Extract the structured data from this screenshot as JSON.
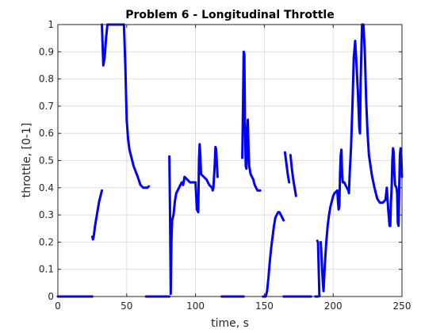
{
  "chart_data": {
    "type": "line",
    "title": "Problem 6 - Longitudinal Throttle",
    "xlabel": "time, s",
    "ylabel": "throttle, [0-1]",
    "xlim": [
      0,
      250
    ],
    "ylim": [
      0,
      1
    ],
    "xticks": [
      0,
      50,
      100,
      150,
      200,
      250
    ],
    "yticks": [
      0,
      0.1,
      0.2,
      0.3,
      0.4,
      0.5,
      0.6,
      0.7,
      0.8,
      0.9,
      1
    ],
    "xtick_labels": [
      "0",
      "50",
      "100",
      "150",
      "200",
      "250"
    ],
    "ytick_labels": [
      "0",
      "0.1",
      "0.2",
      "0.3",
      "0.4",
      "0.5",
      "0.6",
      "0.7",
      "0.8",
      "0.9",
      "1"
    ],
    "grid": true,
    "series_color": "#0000ff",
    "segments": [
      [
        [
          0,
          0
        ],
        [
          25,
          0
        ]
      ],
      [
        [
          25,
          0.22
        ],
        [
          25.5,
          0.21
        ],
        [
          26,
          0.22
        ],
        [
          27,
          0.26
        ],
        [
          28,
          0.29
        ],
        [
          29,
          0.32
        ],
        [
          30,
          0.35
        ],
        [
          31,
          0.37
        ],
        [
          32,
          0.39
        ]
      ],
      [
        [
          32,
          1
        ],
        [
          33,
          0.85
        ],
        [
          34,
          0.88
        ],
        [
          35,
          0.95
        ],
        [
          36,
          1
        ],
        [
          40,
          1
        ],
        [
          45,
          1
        ],
        [
          48,
          1
        ],
        [
          49,
          0.85
        ],
        [
          50,
          0.65
        ],
        [
          51,
          0.58
        ],
        [
          52,
          0.54
        ],
        [
          55,
          0.48
        ],
        [
          58,
          0.44
        ],
        [
          60,
          0.41
        ],
        [
          62,
          0.4
        ],
        [
          65,
          0.4
        ],
        [
          66,
          0.405
        ]
      ],
      [
        [
          64,
          0
        ],
        [
          81,
          0
        ]
      ],
      [
        [
          81,
          0.515
        ],
        [
          81.5,
          0.3
        ],
        [
          82,
          0.01
        ],
        [
          82.5,
          0.2
        ],
        [
          83,
          0.28
        ],
        [
          84,
          0.3
        ],
        [
          85,
          0.35
        ],
        [
          86,
          0.38
        ],
        [
          88,
          0.4
        ],
        [
          90,
          0.42
        ],
        [
          91,
          0.41
        ],
        [
          92,
          0.44
        ],
        [
          94,
          0.43
        ],
        [
          96,
          0.42
        ],
        [
          98,
          0.42
        ],
        [
          100,
          0.42
        ],
        [
          101,
          0.32
        ],
        [
          102,
          0.31
        ],
        [
          102.5,
          0.5
        ],
        [
          103,
          0.56
        ],
        [
          103.5,
          0.52
        ],
        [
          104,
          0.45
        ],
        [
          106,
          0.44
        ],
        [
          108,
          0.43
        ],
        [
          110,
          0.41
        ],
        [
          112,
          0.4
        ],
        [
          112.5,
          0.39
        ],
        [
          113,
          0.4
        ],
        [
          114,
          0.49
        ],
        [
          114.5,
          0.55
        ],
        [
          115,
          0.54
        ],
        [
          115.5,
          0.49
        ],
        [
          116,
          0.44
        ]
      ],
      [
        [
          119,
          0
        ],
        [
          135,
          0
        ]
      ],
      [
        [
          134,
          0.51
        ],
        [
          134.5,
          0.7
        ],
        [
          135,
          0.9
        ],
        [
          135.5,
          0.89
        ],
        [
          136,
          0.6
        ],
        [
          136.5,
          0.48
        ],
        [
          137,
          0.47
        ],
        [
          137.5,
          0.6
        ],
        [
          138,
          0.65
        ],
        [
          138.5,
          0.55
        ],
        [
          139,
          0.48
        ],
        [
          140,
          0.45
        ],
        [
          141,
          0.44
        ],
        [
          142,
          0.43
        ],
        [
          143,
          0.41
        ],
        [
          144,
          0.4
        ],
        [
          145,
          0.39
        ],
        [
          147,
          0.39
        ]
      ],
      [
        [
          149,
          0
        ],
        [
          151,
          0
        ],
        [
          152,
          0.02
        ],
        [
          153,
          0.07
        ],
        [
          154,
          0.13
        ],
        [
          155,
          0.18
        ],
        [
          156,
          0.22
        ],
        [
          157,
          0.26
        ],
        [
          158,
          0.29
        ],
        [
          159,
          0.3
        ],
        [
          160,
          0.31
        ],
        [
          161,
          0.31
        ],
        [
          162,
          0.3
        ],
        [
          163,
          0.29
        ],
        [
          164,
          0.28
        ]
      ],
      [
        [
          164,
          0
        ],
        [
          172,
          0
        ]
      ],
      [
        [
          165,
          0.53
        ],
        [
          166,
          0.49
        ],
        [
          167,
          0.45
        ],
        [
          168,
          0.42
        ]
      ],
      [
        [
          169,
          0.52
        ],
        [
          170,
          0.47
        ],
        [
          171,
          0.43
        ],
        [
          172,
          0.4
        ],
        [
          173,
          0.37
        ]
      ],
      [
        [
          172,
          0
        ],
        [
          184,
          0
        ]
      ],
      [
        [
          187,
          0
        ],
        [
          189,
          0
        ]
      ],
      [
        [
          188.5,
          0.205
        ],
        [
          189,
          0.2
        ],
        [
          189.5,
          0.1
        ],
        [
          190,
          0.001
        ]
      ],
      [
        [
          191,
          0.2
        ],
        [
          191.5,
          0.15
        ],
        [
          192,
          0.1
        ],
        [
          192.5,
          0.05
        ],
        [
          193,
          0.02
        ],
        [
          194,
          0.12
        ],
        [
          195,
          0.2
        ],
        [
          196,
          0.26
        ],
        [
          197,
          0.3
        ],
        [
          198,
          0.33
        ],
        [
          199,
          0.35
        ],
        [
          200,
          0.37
        ],
        [
          201,
          0.38
        ],
        [
          202,
          0.385
        ],
        [
          203,
          0.39
        ],
        [
          203.5,
          0.35
        ],
        [
          204,
          0.32
        ],
        [
          204.5,
          0.33
        ],
        [
          205,
          0.45
        ],
        [
          205.5,
          0.52
        ],
        [
          206,
          0.54
        ],
        [
          206.5,
          0.45
        ],
        [
          207,
          0.42
        ],
        [
          208,
          0.42
        ],
        [
          209,
          0.41
        ],
        [
          210,
          0.4
        ],
        [
          211,
          0.39
        ],
        [
          211.5,
          0.38
        ],
        [
          212,
          0.45
        ],
        [
          213,
          0.55
        ],
        [
          214,
          0.7
        ],
        [
          215,
          0.88
        ],
        [
          216,
          0.94
        ],
        [
          217,
          0.85
        ],
        [
          218,
          0.75
        ],
        [
          219,
          0.62
        ],
        [
          219.5,
          0.6
        ],
        [
          220,
          0.8
        ],
        [
          221,
          1
        ],
        [
          222,
          1
        ],
        [
          223,
          0.9
        ],
        [
          224,
          0.72
        ],
        [
          225,
          0.6
        ],
        [
          226,
          0.52
        ],
        [
          228,
          0.45
        ],
        [
          230,
          0.4
        ],
        [
          232,
          0.36
        ],
        [
          234,
          0.345
        ],
        [
          236,
          0.345
        ],
        [
          238,
          0.355
        ],
        [
          239,
          0.4
        ],
        [
          240,
          0.32
        ],
        [
          241,
          0.26
        ],
        [
          241.5,
          0.26
        ],
        [
          242,
          0.35
        ],
        [
          242.5,
          0.4
        ],
        [
          243,
          0.5
        ],
        [
          243.5,
          0.545
        ],
        [
          244,
          0.53
        ],
        [
          244.5,
          0.45
        ],
        [
          245,
          0.41
        ],
        [
          246,
          0.4
        ],
        [
          246.5,
          0.38
        ],
        [
          247,
          0.27
        ],
        [
          247.5,
          0.26
        ],
        [
          248,
          0.4
        ],
        [
          248.5,
          0.52
        ],
        [
          249,
          0.545
        ],
        [
          249.5,
          0.52
        ],
        [
          250,
          0.44
        ]
      ]
    ]
  }
}
